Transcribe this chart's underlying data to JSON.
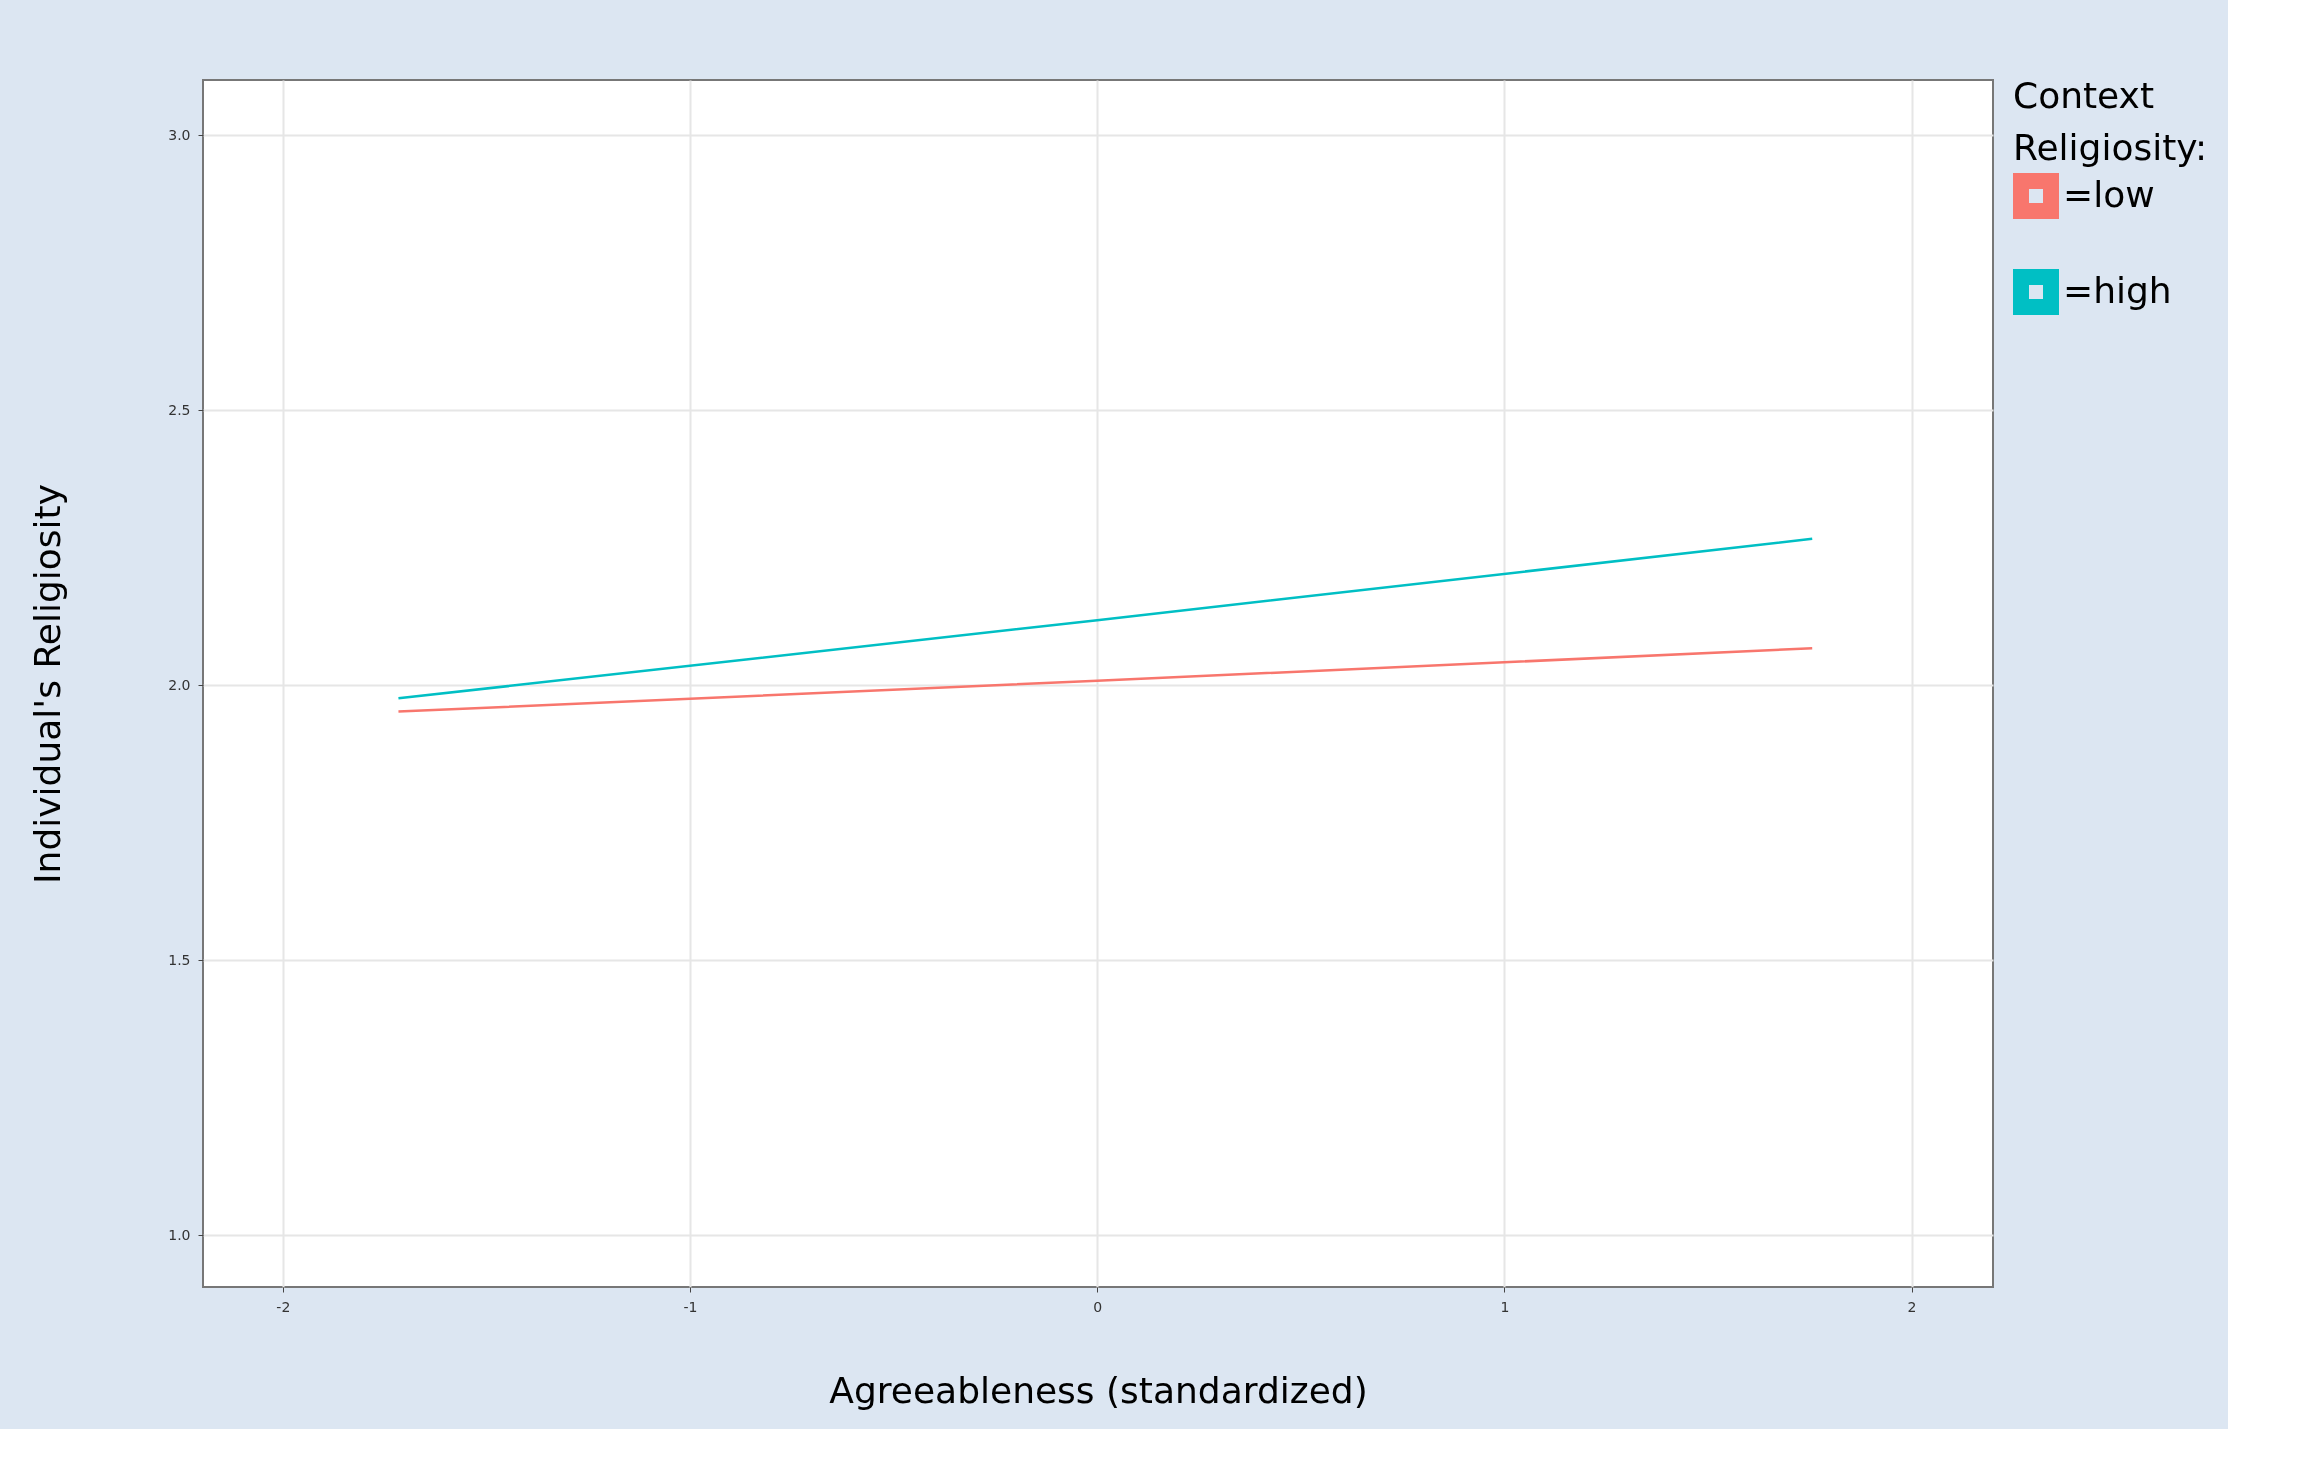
{
  "chart_data": {
    "type": "line",
    "xlabel": "Agreeableness (standardized)",
    "ylabel": "Individual's Religiosity",
    "legend_title": "Context Religiosity:",
    "x": [
      -1.716,
      0,
      1.756
    ],
    "series": [
      {
        "name": "=low",
        "color": "#f8766d",
        "values": [
          1.952,
          2.008,
          2.067
        ]
      },
      {
        "name": "=high",
        "color": "#00bfc4",
        "values": [
          1.976,
          2.118,
          2.266
        ]
      }
    ],
    "xlim": [
      -2.196,
      2.2
    ],
    "xticks": [
      -2,
      -1,
      0,
      1,
      2
    ],
    "ylim": [
      0.906,
      3.1
    ],
    "yticks": [
      {
        "value": 1.0,
        "label": "1.0"
      },
      {
        "value": 1.5,
        "label": "1.5"
      },
      {
        "value": 2.0,
        "label": "2.0"
      },
      {
        "value": 2.5,
        "label": "2.5"
      },
      {
        "value": 3.0,
        "label": "3.0"
      }
    ],
    "grid": true,
    "legend": "right",
    "marker": "none",
    "line_style": "solid"
  }
}
